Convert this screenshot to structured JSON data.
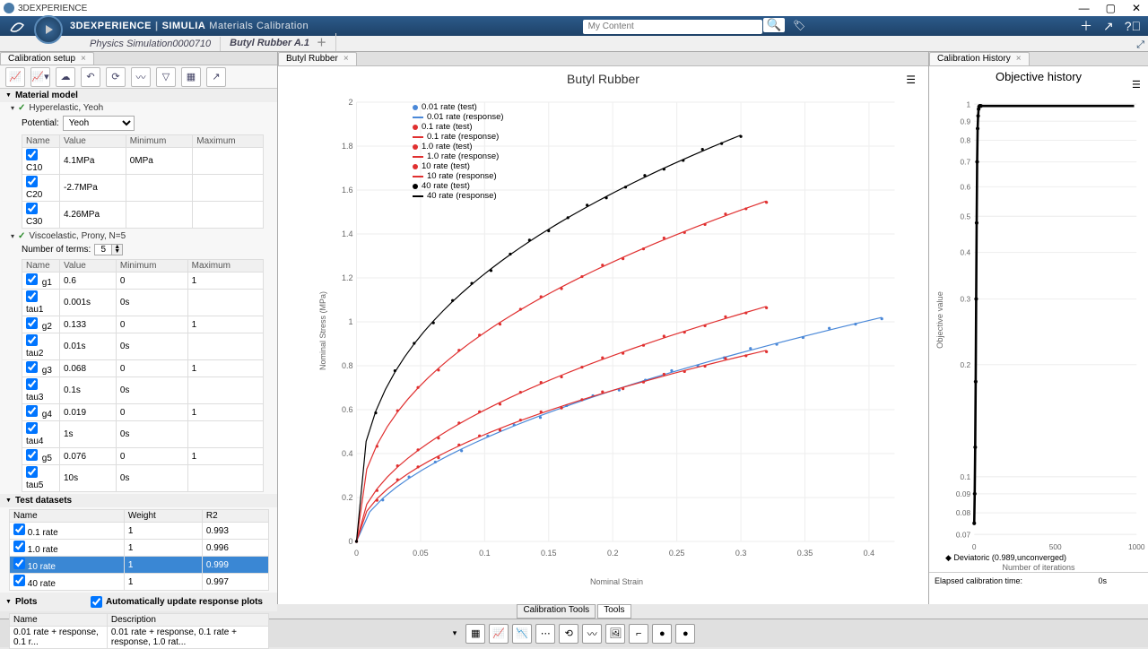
{
  "window_title": "3DEXPERIENCE",
  "header": {
    "brand_main": "3DEXPERIENCE",
    "brand_sub": "SIMULIA",
    "brand_area": "Materials Calibration",
    "search_placeholder": "My Content"
  },
  "file_tabs": {
    "tab1": "Physics Simulation0000710",
    "tab2": "Butyl Rubber A.1"
  },
  "panels": {
    "left_tab": "Calibration setup",
    "center_tab": "Butyl Rubber",
    "right_tab": "Calibration History"
  },
  "material_model": {
    "title": "Material model",
    "hyperelastic": {
      "label": "Hyperelastic, Yeoh",
      "potential_label": "Potential:",
      "potential_value": "Yeoh",
      "columns": {
        "name": "Name",
        "value": "Value",
        "min": "Minimum",
        "max": "Maximum"
      },
      "rows": [
        {
          "name": "C10",
          "value": "4.1MPa",
          "min": "0MPa",
          "max": ""
        },
        {
          "name": "C20",
          "value": "-2.7MPa",
          "min": "",
          "max": ""
        },
        {
          "name": "C30",
          "value": "4.26MPa",
          "min": "",
          "max": ""
        }
      ]
    },
    "viscoelastic": {
      "label": "Viscoelastic, Prony, N=5",
      "terms_label": "Number of terms:",
      "terms_value": "5",
      "columns": {
        "name": "Name",
        "value": "Value",
        "min": "Minimum",
        "max": "Maximum"
      },
      "rows": [
        {
          "name": "g1",
          "value": "0.6",
          "min": "0",
          "max": "1"
        },
        {
          "name": "tau1",
          "value": "0.001s",
          "min": "0s",
          "max": ""
        },
        {
          "name": "g2",
          "value": "0.133",
          "min": "0",
          "max": "1"
        },
        {
          "name": "tau2",
          "value": "0.01s",
          "min": "0s",
          "max": ""
        },
        {
          "name": "g3",
          "value": "0.068",
          "min": "0",
          "max": "1"
        },
        {
          "name": "tau3",
          "value": "0.1s",
          "min": "0s",
          "max": ""
        },
        {
          "name": "g4",
          "value": "0.019",
          "min": "0",
          "max": "1"
        },
        {
          "name": "tau4",
          "value": "1s",
          "min": "0s",
          "max": ""
        },
        {
          "name": "g5",
          "value": "0.076",
          "min": "0",
          "max": "1"
        },
        {
          "name": "tau5",
          "value": "10s",
          "min": "0s",
          "max": ""
        }
      ]
    }
  },
  "test_datasets": {
    "title": "Test datasets",
    "columns": {
      "name": "Name",
      "weight": "Weight",
      "r2": "R2"
    },
    "rows": [
      {
        "name": "0.1 rate",
        "weight": "1",
        "r2": "0.993"
      },
      {
        "name": "1.0 rate",
        "weight": "1",
        "r2": "0.996"
      },
      {
        "name": "10 rate",
        "weight": "1",
        "r2": "0.999"
      },
      {
        "name": "40 rate",
        "weight": "1",
        "r2": "0.997"
      }
    ],
    "selected_index": 2
  },
  "plots": {
    "title": "Plots",
    "auto_update": "Automatically update response plots",
    "columns": {
      "name": "Name",
      "desc": "Description"
    },
    "row": {
      "name": "0.01 rate + response, 0.1 r...",
      "desc": "0.01 rate + response, 0.1 rate + response, 1.0 rat..."
    }
  },
  "chart": {
    "title": "Butyl Rubber",
    "x_axis": "Nominal Strain",
    "y_axis": "Nominal Stress (MPa)",
    "x_ticks": [
      "0",
      "0.05",
      "0.1",
      "0.15",
      "0.2",
      "0.25",
      "0.3",
      "0.35",
      "0.4"
    ],
    "y_ticks": [
      "0",
      "0.2",
      "0.4",
      "0.6",
      "0.8",
      "1",
      "1.2",
      "1.4",
      "1.6",
      "1.8",
      "2"
    ],
    "legend": [
      {
        "label": "0.01 rate (test)",
        "color": "#4a88d8",
        "type": "dot"
      },
      {
        "label": "0.01 rate (response)",
        "color": "#4a88d8",
        "type": "line"
      },
      {
        "label": "0.1 rate (test)",
        "color": "#e03030",
        "type": "dot"
      },
      {
        "label": "0.1 rate (response)",
        "color": "#e03030",
        "type": "line"
      },
      {
        "label": "1.0 rate (test)",
        "color": "#e03030",
        "type": "dot"
      },
      {
        "label": "1.0 rate (response)",
        "color": "#e03030",
        "type": "line"
      },
      {
        "label": "10 rate (test)",
        "color": "#e03030",
        "type": "dot"
      },
      {
        "label": "10 rate (response)",
        "color": "#e03030",
        "type": "line"
      },
      {
        "label": "40 rate (test)",
        "color": "#000000",
        "type": "dot"
      },
      {
        "label": "40 rate (response)",
        "color": "#000000",
        "type": "line"
      }
    ],
    "series": [
      {
        "color": "#4a88d8",
        "x_max": 0.41,
        "y_max": 1.02,
        "curve": 0.55
      },
      {
        "color": "#e03030",
        "x_max": 0.32,
        "y_max": 0.87,
        "curve": 0.5
      },
      {
        "color": "#e03030",
        "x_max": 0.32,
        "y_max": 1.07,
        "curve": 0.5
      },
      {
        "color": "#e03030",
        "x_max": 0.32,
        "y_max": 1.55,
        "curve": 0.42
      },
      {
        "color": "#000000",
        "x_max": 0.3,
        "y_max": 1.85,
        "curve": 0.38
      }
    ]
  },
  "history": {
    "title": "Objective history",
    "y_axis": "Objective value",
    "x_axis": "Number of iterations",
    "x_ticks": [
      "0",
      "500",
      "1000"
    ],
    "y_ticks": [
      "0.07",
      "0.08",
      "0.09",
      "0.1",
      "0.2",
      "0.3",
      "0.4",
      "0.5",
      "0.6",
      "0.7",
      "0.8",
      "0.9",
      "1"
    ],
    "legend": "Deviatoric (0.989,unconverged)",
    "footer_label": "Elapsed calibration time:",
    "footer_value": "0s"
  },
  "bottom_tabs": {
    "t1": "Calibration Tools",
    "t2": "Tools"
  }
}
